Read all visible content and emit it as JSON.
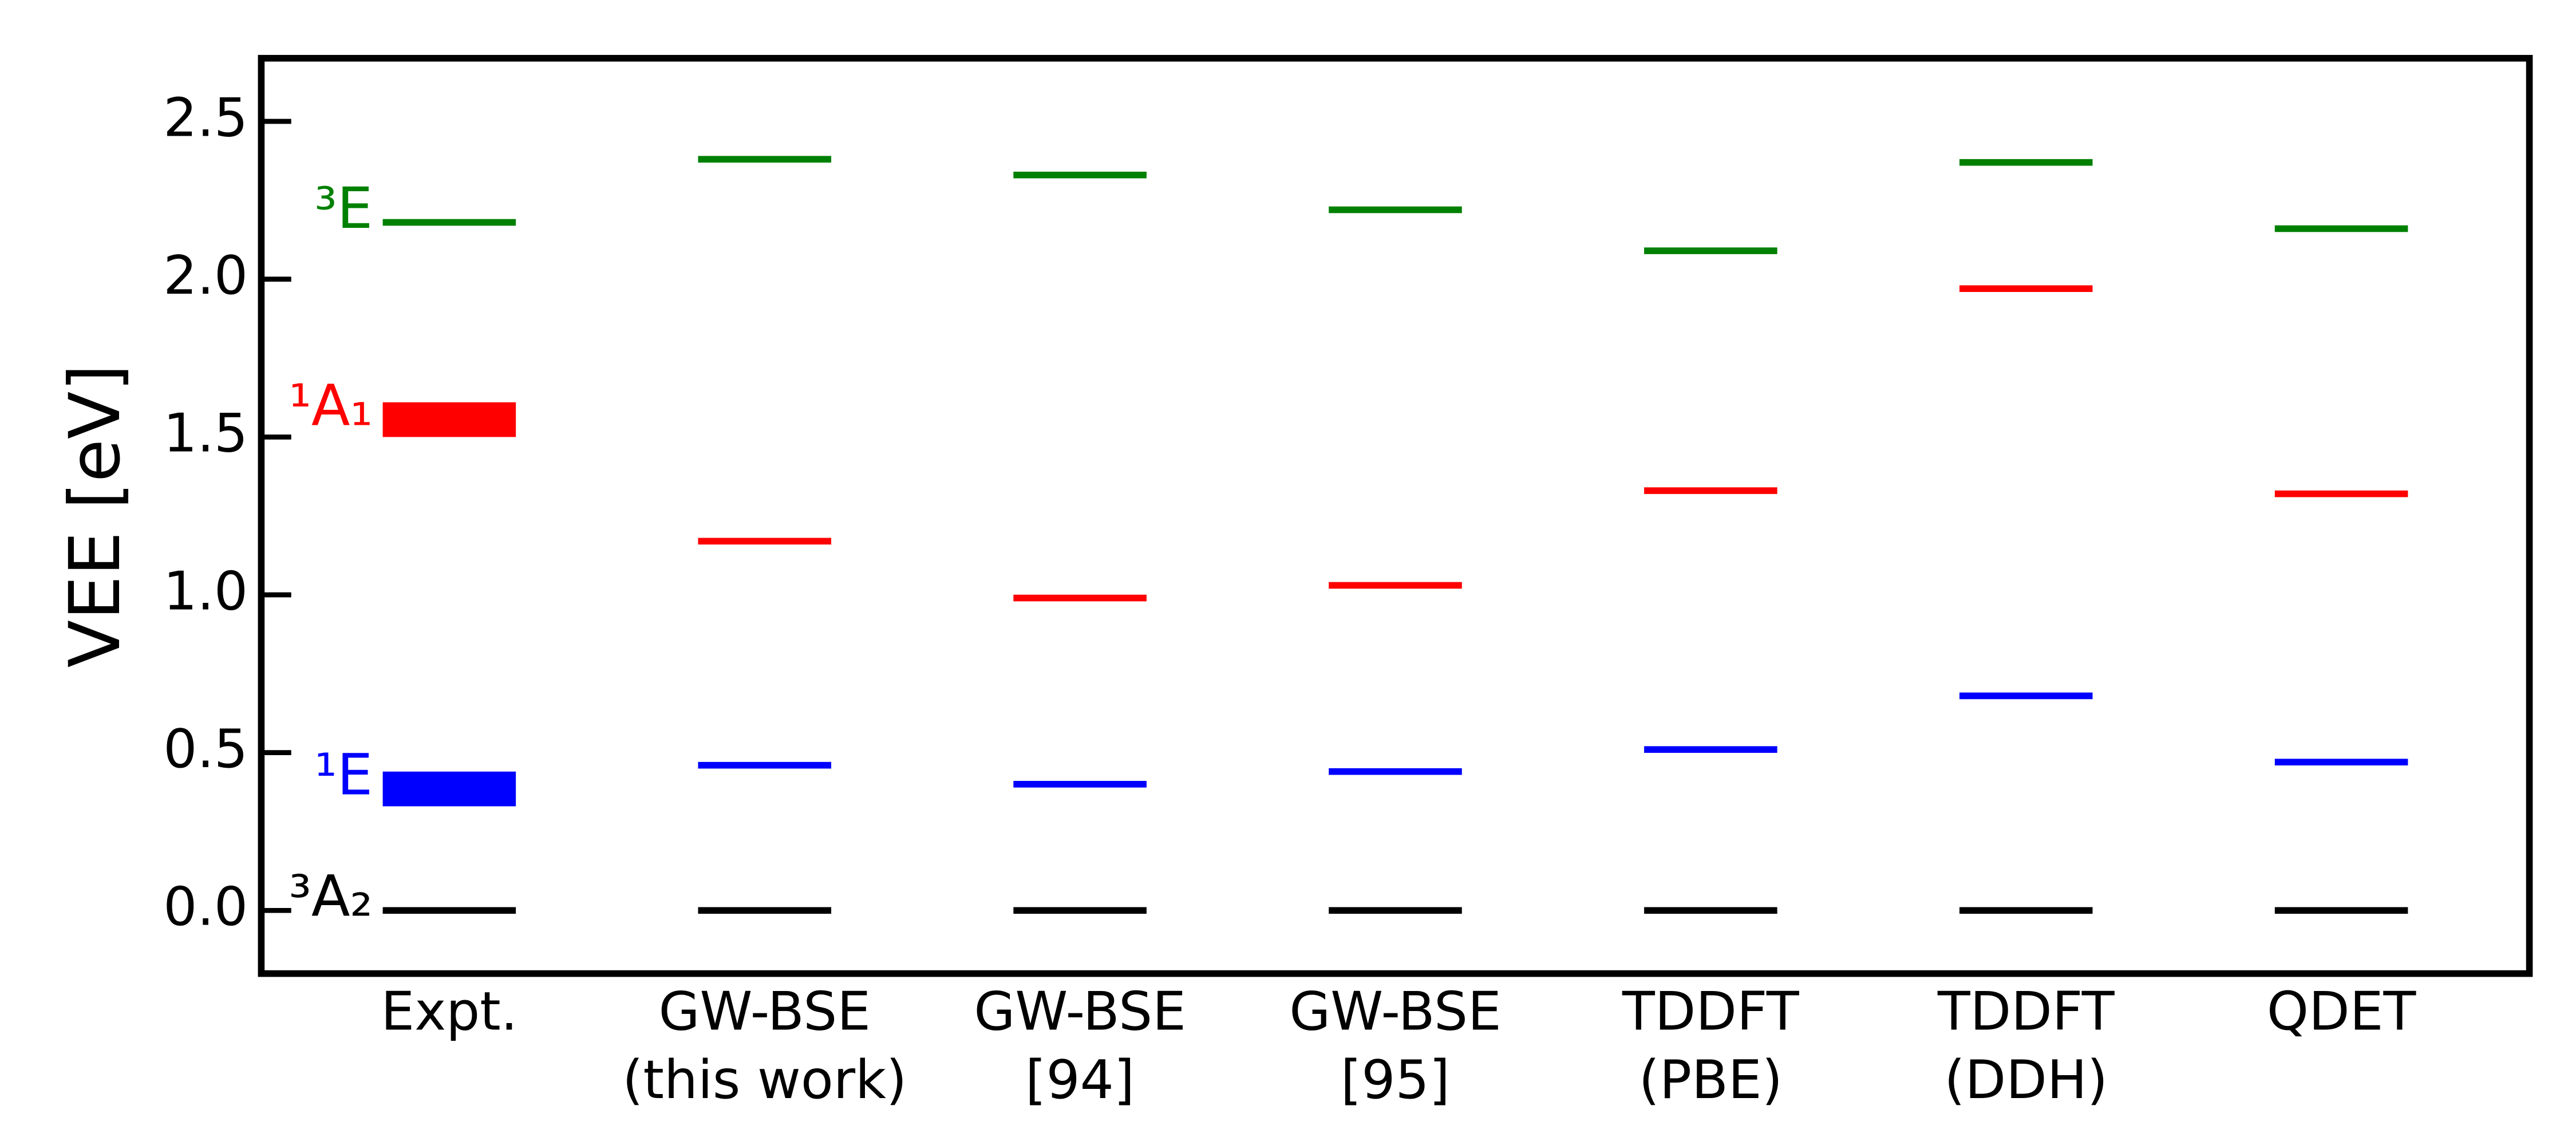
{
  "chart_data": {
    "type": "level",
    "y_label": "VEE [eV]",
    "categories": [
      [
        "Expt."
      ],
      [
        "GW-BSE",
        "(this work)"
      ],
      [
        "GW-BSE",
        "[94]"
      ],
      [
        "GW-BSE",
        "[95]"
      ],
      [
        "TDDFT",
        "(PBE)"
      ],
      [
        "TDDFT",
        "(DDH)"
      ],
      [
        "QDET"
      ]
    ],
    "series": [
      {
        "name": "³A₂",
        "color": "#000000",
        "values": [
          0,
          0,
          0,
          0,
          0,
          0,
          0
        ]
      },
      {
        "name": "¹E",
        "color": "#0000ff",
        "values": [
          null,
          0.46,
          0.4,
          0.44,
          0.51,
          0.68,
          0.47
        ],
        "band": [
          0.33,
          0.44
        ]
      },
      {
        "name": "¹A₁",
        "color": "#ff0000",
        "values": [
          null,
          1.17,
          0.99,
          1.03,
          1.33,
          1.97,
          1.32
        ],
        "band": [
          1.5,
          1.61
        ]
      },
      {
        "name": "³E",
        "color": "#008000",
        "values": [
          2.18,
          2.38,
          2.33,
          2.22,
          2.09,
          2.37,
          2.16
        ]
      }
    ],
    "ylim": [
      -0.2,
      2.7
    ],
    "yticks": [
      {
        "value": 0,
        "label": "0.0"
      },
      0.5,
      {
        "value": 1,
        "label": "1.0"
      },
      1.5,
      {
        "value": 2,
        "label": "2.0"
      },
      2.5
    ]
  }
}
